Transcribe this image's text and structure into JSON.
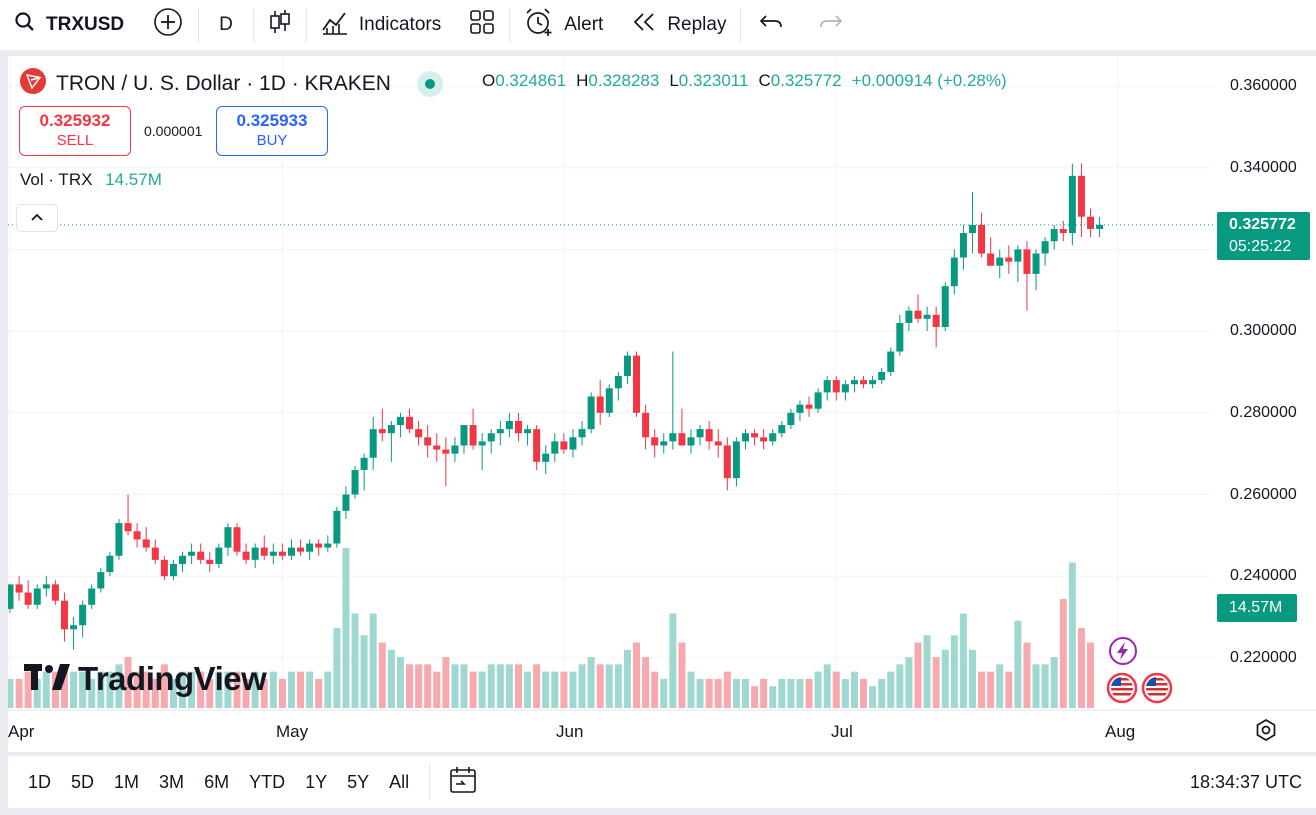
{
  "toolbar": {
    "symbol": "TRXUSD",
    "interval": "D",
    "indicators_label": "Indicators",
    "alert_label": "Alert",
    "replay_label": "Replay"
  },
  "legend": {
    "title": "TRON / U. S. Dollar · 1D · KRAKEN",
    "o_key": "O",
    "o_val": "0.324861",
    "h_key": "H",
    "h_val": "0.328283",
    "l_key": "L",
    "l_val": "0.323011",
    "c_key": "C",
    "c_val": "0.325772",
    "change": "+0.000914 (+0.28%)"
  },
  "trade": {
    "sell_price": "0.325932",
    "sell_label": "SELL",
    "spread": "0.000001",
    "buy_price": "0.325933",
    "buy_label": "BUY"
  },
  "volume": {
    "label": "Vol · TRX",
    "value": "14.57M"
  },
  "price_badge": {
    "price": "0.325772",
    "countdown": "05:25:22"
  },
  "volume_badge": "14.57M",
  "watermark": "TradingView",
  "colors": {
    "up": "#089981",
    "down": "#f23645",
    "up_vol": "#9fd8d0",
    "down_vol": "#f7a9ae",
    "accent": "#2962ff"
  },
  "chart_data": {
    "type": "candlestick",
    "y_ticks": [
      "0.360000",
      "0.340000",
      "0.300000",
      "0.280000",
      "0.260000",
      "0.240000",
      "0.220000"
    ],
    "ylim": [
      0.208,
      0.362
    ],
    "x_ticks": [
      "Apr",
      "May",
      "Jun",
      "Jul",
      "Aug"
    ],
    "candles": [
      [
        0.232,
        0.238,
        0.231,
        0.238
      ],
      [
        0.238,
        0.24,
        0.234,
        0.236
      ],
      [
        0.236,
        0.239,
        0.232,
        0.233
      ],
      [
        0.233,
        0.238,
        0.232,
        0.237
      ],
      [
        0.237,
        0.24,
        0.235,
        0.238
      ],
      [
        0.238,
        0.239,
        0.233,
        0.234
      ],
      [
        0.234,
        0.236,
        0.224,
        0.227
      ],
      [
        0.227,
        0.23,
        0.222,
        0.228
      ],
      [
        0.228,
        0.234,
        0.225,
        0.233
      ],
      [
        0.233,
        0.238,
        0.232,
        0.237
      ],
      [
        0.237,
        0.242,
        0.236,
        0.241
      ],
      [
        0.241,
        0.246,
        0.24,
        0.245
      ],
      [
        0.245,
        0.254,
        0.244,
        0.253
      ],
      [
        0.253,
        0.26,
        0.25,
        0.251
      ],
      [
        0.251,
        0.253,
        0.247,
        0.249
      ],
      [
        0.249,
        0.252,
        0.246,
        0.247
      ],
      [
        0.247,
        0.249,
        0.243,
        0.244
      ],
      [
        0.244,
        0.245,
        0.239,
        0.24
      ],
      [
        0.24,
        0.244,
        0.239,
        0.243
      ],
      [
        0.243,
        0.246,
        0.241,
        0.245
      ],
      [
        0.245,
        0.248,
        0.243,
        0.246
      ],
      [
        0.246,
        0.248,
        0.243,
        0.244
      ],
      [
        0.244,
        0.246,
        0.241,
        0.243
      ],
      [
        0.243,
        0.248,
        0.242,
        0.247
      ],
      [
        0.247,
        0.253,
        0.245,
        0.252
      ],
      [
        0.252,
        0.253,
        0.245,
        0.246
      ],
      [
        0.246,
        0.248,
        0.243,
        0.244
      ],
      [
        0.244,
        0.248,
        0.242,
        0.247
      ],
      [
        0.247,
        0.25,
        0.244,
        0.245
      ],
      [
        0.245,
        0.248,
        0.243,
        0.246
      ],
      [
        0.246,
        0.248,
        0.244,
        0.245
      ],
      [
        0.245,
        0.249,
        0.244,
        0.247
      ],
      [
        0.247,
        0.249,
        0.245,
        0.246
      ],
      [
        0.246,
        0.249,
        0.244,
        0.248
      ],
      [
        0.248,
        0.249,
        0.245,
        0.247
      ],
      [
        0.247,
        0.25,
        0.246,
        0.248
      ],
      [
        0.248,
        0.257,
        0.247,
        0.256
      ],
      [
        0.256,
        0.262,
        0.254,
        0.26
      ],
      [
        0.26,
        0.267,
        0.259,
        0.266
      ],
      [
        0.266,
        0.27,
        0.261,
        0.269
      ],
      [
        0.269,
        0.279,
        0.266,
        0.276
      ],
      [
        0.276,
        0.281,
        0.273,
        0.275
      ],
      [
        0.275,
        0.278,
        0.268,
        0.277
      ],
      [
        0.277,
        0.28,
        0.274,
        0.279
      ],
      [
        0.279,
        0.281,
        0.275,
        0.276
      ],
      [
        0.276,
        0.278,
        0.272,
        0.274
      ],
      [
        0.274,
        0.277,
        0.269,
        0.272
      ],
      [
        0.272,
        0.275,
        0.268,
        0.271
      ],
      [
        0.271,
        0.274,
        0.262,
        0.27
      ],
      [
        0.27,
        0.274,
        0.268,
        0.272
      ],
      [
        0.272,
        0.277,
        0.27,
        0.277
      ],
      [
        0.277,
        0.281,
        0.271,
        0.272
      ],
      [
        0.272,
        0.275,
        0.266,
        0.273
      ],
      [
        0.273,
        0.276,
        0.27,
        0.275
      ],
      [
        0.275,
        0.278,
        0.272,
        0.276
      ],
      [
        0.276,
        0.28,
        0.274,
        0.278
      ],
      [
        0.278,
        0.28,
        0.273,
        0.275
      ],
      [
        0.275,
        0.277,
        0.272,
        0.276
      ],
      [
        0.276,
        0.277,
        0.266,
        0.268
      ],
      [
        0.268,
        0.272,
        0.265,
        0.27
      ],
      [
        0.27,
        0.275,
        0.268,
        0.273
      ],
      [
        0.273,
        0.275,
        0.27,
        0.271
      ],
      [
        0.271,
        0.276,
        0.269,
        0.274
      ],
      [
        0.274,
        0.278,
        0.272,
        0.276
      ],
      [
        0.276,
        0.285,
        0.275,
        0.284
      ],
      [
        0.284,
        0.288,
        0.277,
        0.28
      ],
      [
        0.28,
        0.287,
        0.279,
        0.286
      ],
      [
        0.286,
        0.29,
        0.283,
        0.289
      ],
      [
        0.289,
        0.295,
        0.287,
        0.294
      ],
      [
        0.294,
        0.295,
        0.279,
        0.28
      ],
      [
        0.28,
        0.282,
        0.271,
        0.274
      ],
      [
        0.274,
        0.276,
        0.269,
        0.272
      ],
      [
        0.272,
        0.275,
        0.27,
        0.273
      ],
      [
        0.273,
        0.295,
        0.271,
        0.275
      ],
      [
        0.275,
        0.281,
        0.272,
        0.272
      ],
      [
        0.272,
        0.276,
        0.27,
        0.274
      ],
      [
        0.274,
        0.277,
        0.272,
        0.276
      ],
      [
        0.276,
        0.278,
        0.271,
        0.273
      ],
      [
        0.273,
        0.276,
        0.269,
        0.272
      ],
      [
        0.272,
        0.274,
        0.261,
        0.264
      ],
      [
        0.264,
        0.274,
        0.262,
        0.273
      ],
      [
        0.273,
        0.276,
        0.271,
        0.275
      ],
      [
        0.275,
        0.276,
        0.272,
        0.274
      ],
      [
        0.274,
        0.276,
        0.271,
        0.273
      ],
      [
        0.273,
        0.276,
        0.272,
        0.275
      ],
      [
        0.275,
        0.278,
        0.274,
        0.277
      ],
      [
        0.277,
        0.281,
        0.276,
        0.28
      ],
      [
        0.28,
        0.283,
        0.278,
        0.282
      ],
      [
        0.282,
        0.284,
        0.279,
        0.281
      ],
      [
        0.281,
        0.286,
        0.28,
        0.285
      ],
      [
        0.285,
        0.289,
        0.283,
        0.288
      ],
      [
        0.288,
        0.289,
        0.283,
        0.285
      ],
      [
        0.285,
        0.288,
        0.283,
        0.287
      ],
      [
        0.287,
        0.289,
        0.285,
        0.288
      ],
      [
        0.288,
        0.289,
        0.286,
        0.287
      ],
      [
        0.287,
        0.289,
        0.286,
        0.288
      ],
      [
        0.288,
        0.291,
        0.287,
        0.29
      ],
      [
        0.29,
        0.296,
        0.289,
        0.295
      ],
      [
        0.295,
        0.304,
        0.294,
        0.302
      ],
      [
        0.302,
        0.306,
        0.3,
        0.305
      ],
      [
        0.305,
        0.309,
        0.302,
        0.303
      ],
      [
        0.303,
        0.306,
        0.3,
        0.304
      ],
      [
        0.304,
        0.306,
        0.296,
        0.301
      ],
      [
        0.301,
        0.312,
        0.3,
        0.311
      ],
      [
        0.311,
        0.32,
        0.309,
        0.318
      ],
      [
        0.318,
        0.326,
        0.315,
        0.324
      ],
      [
        0.324,
        0.334,
        0.319,
        0.326
      ],
      [
        0.326,
        0.329,
        0.318,
        0.319
      ],
      [
        0.319,
        0.323,
        0.316,
        0.316
      ],
      [
        0.316,
        0.32,
        0.313,
        0.318
      ],
      [
        0.318,
        0.321,
        0.314,
        0.317
      ],
      [
        0.317,
        0.321,
        0.312,
        0.32
      ],
      [
        0.32,
        0.322,
        0.305,
        0.314
      ],
      [
        0.314,
        0.32,
        0.31,
        0.319
      ],
      [
        0.319,
        0.323,
        0.316,
        0.322
      ],
      [
        0.322,
        0.326,
        0.32,
        0.325
      ],
      [
        0.325,
        0.327,
        0.322,
        0.324
      ],
      [
        0.324,
        0.341,
        0.321,
        0.338
      ],
      [
        0.338,
        0.341,
        0.323,
        0.328
      ],
      [
        0.328,
        0.33,
        0.323,
        0.325
      ],
      [
        0.325,
        0.328,
        0.323,
        0.326
      ]
    ],
    "volumes": [
      4,
      4,
      5,
      4,
      5,
      5,
      6,
      5,
      5,
      4,
      5,
      5,
      6,
      7,
      5,
      5,
      4,
      6,
      4,
      5,
      5,
      5,
      4,
      5,
      5,
      5,
      4,
      5,
      4,
      5,
      4,
      5,
      5,
      5,
      4,
      5,
      11,
      22,
      13,
      10,
      13,
      9,
      8,
      7,
      6,
      6,
      6,
      5,
      7,
      6,
      6,
      5,
      5,
      6,
      6,
      6,
      6,
      5,
      6,
      5,
      5,
      5,
      5,
      6,
      7,
      6,
      6,
      6,
      8,
      9,
      7,
      5,
      4,
      13,
      9,
      5,
      4,
      4,
      4,
      5,
      4,
      4,
      3,
      4,
      3,
      4,
      4,
      4,
      4,
      5,
      6,
      5,
      4,
      5,
      4,
      3,
      4,
      5,
      6,
      7,
      9,
      10,
      7,
      8,
      10,
      13,
      8,
      5,
      5,
      6,
      5,
      12,
      9,
      6,
      6,
      7,
      15,
      20,
      11,
      9
    ],
    "x_tick_indexes": [
      0,
      30,
      61,
      91,
      122
    ]
  }
}
